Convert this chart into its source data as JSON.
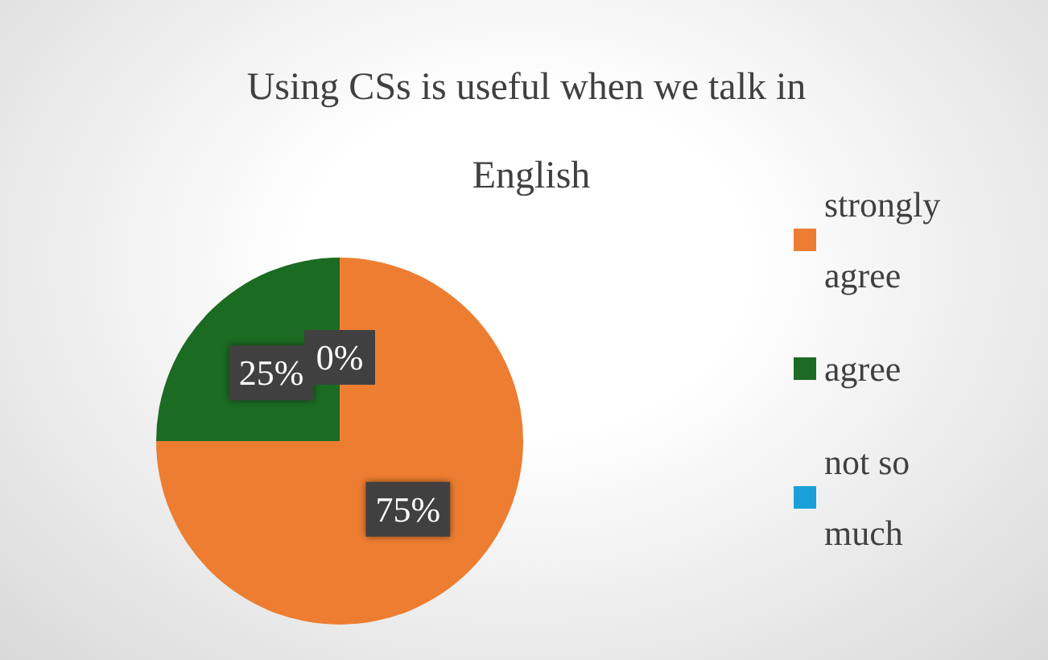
{
  "chart_data": {
    "type": "pie",
    "title": "Using CSs is useful when we talk in English",
    "categories": [
      "strongly agree",
      "agree",
      "not so much"
    ],
    "values": [
      75,
      25,
      0
    ],
    "colors": [
      "#ed7d31",
      "#1b6b22",
      "#1aa0d8"
    ],
    "value_labels": [
      "75%",
      "25%",
      "0%"
    ],
    "legend": "right"
  }
}
